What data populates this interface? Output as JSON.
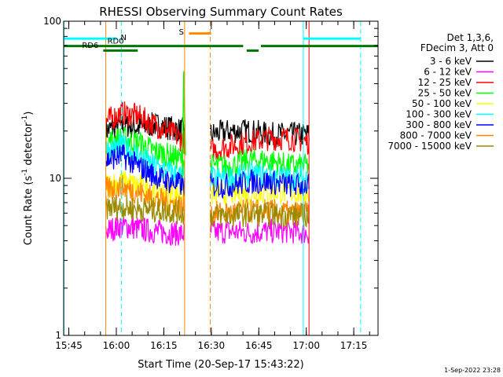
{
  "chart_data": {
    "type": "line",
    "title": "RHESSI Observing Summary Count Rates",
    "xlabel": "Start Time (20-Sep-17 15:43:22)",
    "ylabel_main": "Count Rate (s",
    "ylabel_exp1": "-1",
    "ylabel_mid": " detector",
    "ylabel_exp2": "-1",
    "ylabel_end": ")",
    "yscale": "log",
    "ylim": [
      1,
      100
    ],
    "yticks": [
      {
        "value": 1,
        "label": "1"
      },
      {
        "value": 10,
        "label": "10"
      },
      {
        "value": 100,
        "label": "100"
      }
    ],
    "x_unit": "minutes since 15:43:22",
    "xlim": [
      0,
      99.3
    ],
    "xticks": [
      {
        "value": 1.63,
        "label": "15:45"
      },
      {
        "value": 16.63,
        "label": "16:00"
      },
      {
        "value": 31.63,
        "label": "16:15"
      },
      {
        "value": 46.63,
        "label": "16:30"
      },
      {
        "value": 61.63,
        "label": "16:45"
      },
      {
        "value": 76.63,
        "label": "17:00"
      },
      {
        "value": 91.63,
        "label": "17:15"
      }
    ],
    "legend_header": [
      "Det 1,3,6,",
      "FDecim 3, Att 0"
    ],
    "legend_position": "right",
    "series": [
      {
        "name": "3 - 6 keV",
        "color": "#000000",
        "segments": [
          {
            "x0": 13.3,
            "x1": 38.2,
            "level": [
              20,
              22,
              21,
              22,
              21,
              20
            ]
          },
          {
            "x0": 46.3,
            "x1": 77.5,
            "level": [
              19,
              20,
              20,
              19,
              19,
              19
            ]
          }
        ]
      },
      {
        "name": "6 - 12 keV",
        "color": "#ff00ff",
        "segments": [
          {
            "x0": 13.3,
            "x1": 38.2,
            "level": [
              4.6,
              5.0,
              4.8,
              4.6,
              4.5,
              4.4
            ]
          },
          {
            "x0": 46.3,
            "x1": 77.5,
            "level": [
              4.5,
              4.6,
              4.5,
              4.6,
              4.6,
              4.5
            ]
          }
        ]
      },
      {
        "name": "12 - 25 keV",
        "color": "#ff0000",
        "segments": [
          {
            "x0": 13.3,
            "x1": 38.2,
            "level": [
              23,
              26,
              25,
              22,
              20,
              17
            ]
          },
          {
            "x0": 46.3,
            "x1": 77.5,
            "level": [
              15,
              16,
              17,
              18,
              18,
              17
            ]
          }
        ]
      },
      {
        "name": "25 - 50 keV",
        "color": "#00ff00",
        "segments": [
          {
            "x0": 13.3,
            "x1": 38.2,
            "level": [
              17,
              18,
              17,
              15,
              14,
              13
            ]
          },
          {
            "x0": 46.3,
            "x1": 77.5,
            "level": [
              12,
              12,
              13,
              13,
              12,
              12
            ]
          }
        ]
      },
      {
        "name": "50 - 100 keV",
        "color": "#ffff00",
        "segments": [
          {
            "x0": 13.3,
            "x1": 38.2,
            "level": [
              9,
              9.5,
              9,
              8.5,
              8,
              8
            ]
          },
          {
            "x0": 46.3,
            "x1": 77.5,
            "level": [
              8,
              8,
              8,
              8.2,
              8.2,
              8
            ]
          }
        ]
      },
      {
        "name": "100 - 300 keV",
        "color": "#00ffff",
        "segments": [
          {
            "x0": 13.3,
            "x1": 38.2,
            "level": [
              15,
              16,
              14,
              12,
              11,
              10
            ]
          },
          {
            "x0": 46.3,
            "x1": 77.5,
            "level": [
              10,
              10,
              10.5,
              10.5,
              10,
              10
            ]
          }
        ]
      },
      {
        "name": "300 - 800 keV",
        "color": "#0000ff",
        "segments": [
          {
            "x0": 13.3,
            "x1": 38.2,
            "level": [
              13,
              14,
              12,
              10.5,
              9.5,
              9
            ]
          },
          {
            "x0": 46.3,
            "x1": 77.5,
            "level": [
              9,
              9,
              9.5,
              9.5,
              9,
              9
            ]
          }
        ]
      },
      {
        "name": "800 - 7000 keV",
        "color": "#ff8800",
        "segments": [
          {
            "x0": 13.3,
            "x1": 38.2,
            "level": [
              8.5,
              8.8,
              8.2,
              7.5,
              7,
              6.5
            ]
          },
          {
            "x0": 46.3,
            "x1": 77.5,
            "level": [
              6,
              6,
              6.2,
              6.2,
              6,
              6
            ]
          }
        ]
      },
      {
        "name": "7000 - 15000 keV",
        "color": "#9a8a00",
        "segments": [
          {
            "x0": 13.3,
            "x1": 38.2,
            "level": [
              6.5,
              6.6,
              6.4,
              6.3,
              6.2,
              6
            ]
          },
          {
            "x0": 46.3,
            "x1": 77.5,
            "level": [
              5.8,
              5.8,
              5.9,
              5.9,
              5.8,
              5.8
            ]
          }
        ]
      }
    ],
    "spike": {
      "x": 38.2,
      "peak": 48
    },
    "vlines": [
      {
        "x": 0.1,
        "color": "#00ffff",
        "dash": false
      },
      {
        "x": 18.2,
        "color": "#00ffff",
        "dash": true
      },
      {
        "x": 75.7,
        "color": "#00ffff",
        "dash": false
      },
      {
        "x": 93.8,
        "color": "#00ffff",
        "dash": true
      },
      {
        "x": 13.3,
        "color": "#ff8800",
        "dash": false
      },
      {
        "x": 38.2,
        "color": "#ff8800",
        "dash": false
      },
      {
        "x": 46.3,
        "color": "#ff8800",
        "dash": true
      },
      {
        "x": 77.5,
        "color": "#ff0000",
        "dash": false
      }
    ],
    "bars": [
      {
        "x0": 0,
        "x1": 16.9,
        "level": 77.5,
        "color": "#00ffff"
      },
      {
        "x0": 75.7,
        "x1": 93.8,
        "level": 77.5,
        "color": "#00ffff"
      },
      {
        "x0": 39.6,
        "x1": 46.6,
        "level": 83.5,
        "color": "#ff8800"
      },
      {
        "x0": 0,
        "x1": 56.7,
        "level": 69.5,
        "color": "#007700"
      },
      {
        "x0": 57.8,
        "x1": 61.6,
        "level": 65.0,
        "color": "#007700"
      },
      {
        "x0": 62.3,
        "x1": 99.3,
        "level": 69.5,
        "color": "#007700"
      },
      {
        "x0": 12.5,
        "x1": 23.4,
        "level": 65.0,
        "color": "#007700"
      }
    ],
    "annotations": [
      {
        "text": "N",
        "x": 18.0,
        "y": 76.0,
        "color": "#00bbff"
      },
      {
        "text": "RD0",
        "x": 13.8,
        "y": 72.2,
        "color": "#007700"
      },
      {
        "text": "S",
        "x": 36.4,
        "y": 82.0,
        "color": "#ff8800"
      },
      {
        "text": "RD6",
        "x": 5.8,
        "y": 67.8,
        "color": "#007700"
      }
    ],
    "footer_timestamp": "1-Sep-2022 23:28"
  }
}
